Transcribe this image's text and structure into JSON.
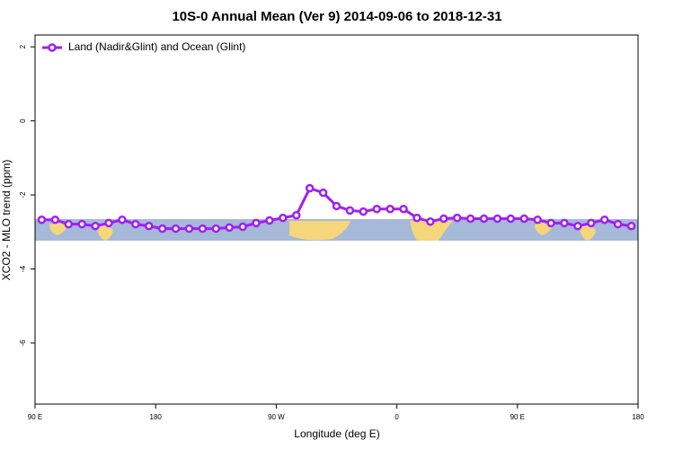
{
  "chart_data": {
    "type": "line",
    "title": "10S-0 Annual Mean (Ver 9)   2014-09-06 to 2018-12-31",
    "x_label": "Longitude (deg E)",
    "y_label": "XCO2 - MLO trend (ppm)",
    "x": [
      95,
      105,
      115,
      125,
      135,
      145,
      155,
      165,
      175,
      185,
      195,
      205,
      215,
      225,
      235,
      245,
      255,
      265,
      275,
      285,
      295,
      305,
      315,
      325,
      335,
      345,
      355,
      365,
      375,
      385,
      395,
      405,
      415,
      425,
      435,
      445,
      455,
      465,
      475,
      485,
      495,
      505,
      515,
      525,
      535
    ],
    "series": [
      {
        "name": "Land (Nadir&Glint) and Ocean (Glint)",
        "color": "#a020f0",
        "values": [
          -2.67,
          -2.67,
          -2.79,
          -2.79,
          -2.84,
          -2.76,
          -2.67,
          -2.79,
          -2.84,
          -2.91,
          -2.91,
          -2.91,
          -2.91,
          -2.91,
          -2.88,
          -2.86,
          -2.76,
          -2.69,
          -2.62,
          -2.55,
          -1.82,
          -1.94,
          -2.3,
          -2.42,
          -2.45,
          -2.38,
          -2.38,
          -2.38,
          -2.62,
          -2.72,
          -2.64,
          -2.62,
          -2.64,
          -2.64,
          -2.64,
          -2.64,
          -2.64,
          -2.67,
          -2.76,
          -2.76,
          -2.84,
          -2.76,
          -2.67,
          -2.79,
          -2.84
        ]
      }
    ],
    "xlim": [
      90,
      540
    ],
    "xticks": [
      {
        "value": 90,
        "label": "90 E"
      },
      {
        "value": 180,
        "label": "180"
      },
      {
        "value": 270,
        "label": "90 W"
      },
      {
        "value": 360,
        "label": "0"
      },
      {
        "value": 450,
        "label": "90 E"
      },
      {
        "value": 540,
        "label": "180"
      }
    ],
    "ylim": [
      -7.65,
      2.32
    ],
    "yticks": [
      2,
      0,
      -2,
      -4,
      -6
    ],
    "legend": "top-left"
  }
}
